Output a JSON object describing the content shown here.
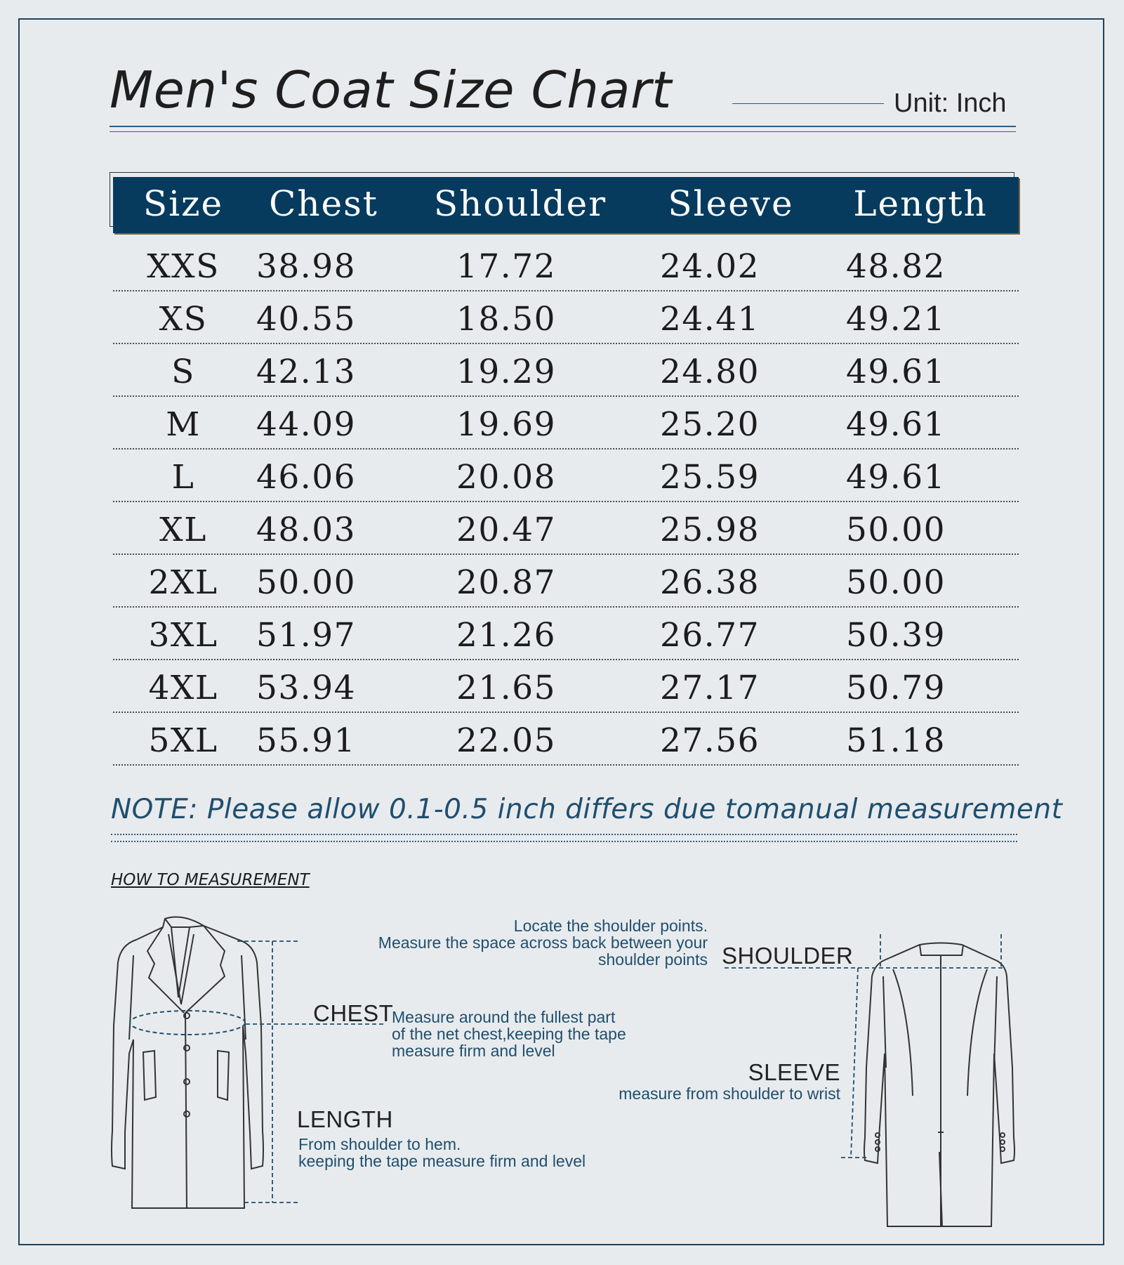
{
  "header": {
    "title": "Men's Coat Size Chart",
    "unit": "Unit: Inch"
  },
  "table": {
    "columns": [
      "Size",
      "Chest",
      "Shoulder",
      "Sleeve",
      "Length"
    ],
    "rows": [
      [
        "XXS",
        "38.98",
        "17.72",
        "24.02",
        "48.82"
      ],
      [
        "XS",
        "40.55",
        "18.50",
        "24.41",
        "49.21"
      ],
      [
        "S",
        "42.13",
        "19.29",
        "24.80",
        "49.61"
      ],
      [
        "M",
        "44.09",
        "19.69",
        "25.20",
        "49.61"
      ],
      [
        "L",
        "46.06",
        "20.08",
        "25.59",
        "49.61"
      ],
      [
        "XL",
        "48.03",
        "20.47",
        "25.98",
        "50.00"
      ],
      [
        "2XL",
        "50.00",
        "20.87",
        "26.38",
        "50.00"
      ],
      [
        "3XL",
        "51.97",
        "21.26",
        "26.77",
        "50.39"
      ],
      [
        "4XL",
        "53.94",
        "21.65",
        "27.17",
        "50.79"
      ],
      [
        "5XL",
        "55.91",
        "22.05",
        "27.56",
        "51.18"
      ]
    ]
  },
  "note": "NOTE: Please allow 0.1-0.5 inch differs due tomanual measurement",
  "howto": {
    "heading": "HOW TO MEASUREMENT",
    "shoulder": {
      "label": "SHOULDER",
      "lines": [
        "Locate the shoulder points.",
        "Measure the space across back between your",
        "shoulder points"
      ]
    },
    "chest": {
      "label": "CHEST",
      "lines": [
        "Measure around the fullest part",
        "of the net chest,keeping the tape",
        "measure firm and level"
      ]
    },
    "sleeve": {
      "label": "SLEEVE",
      "lines": [
        "measure from shoulder to wrist"
      ]
    },
    "length": {
      "label": "LENGTH",
      "lines": [
        "From shoulder to hem.",
        "keeping the tape measure firm and level"
      ]
    }
  },
  "colors": {
    "header_bg": "#073b5e",
    "accent": "#1f4f6e",
    "background": "#e8ebee"
  }
}
